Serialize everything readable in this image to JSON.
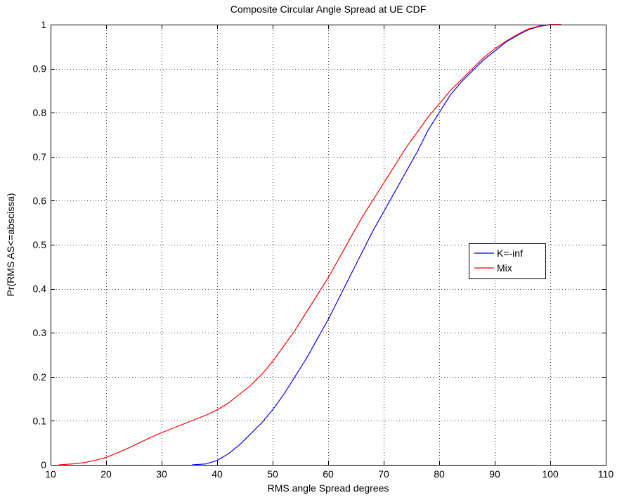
{
  "chart_data": {
    "type": "line",
    "title": "Composite Circular Angle Spread at UE CDF",
    "xlabel": "RMS angle Spread degrees",
    "ylabel": "Pr(RMS AS<=abscissa)",
    "xlim": [
      10,
      110
    ],
    "ylim": [
      0,
      1
    ],
    "xticks": [
      10,
      20,
      30,
      40,
      50,
      60,
      70,
      80,
      90,
      100,
      110
    ],
    "yticks": [
      0,
      0.1,
      0.2,
      0.3,
      0.4,
      0.5,
      0.6,
      0.7,
      0.8,
      0.9,
      1
    ],
    "grid": true,
    "legend_position": "center-right",
    "series": [
      {
        "name": "K=-inf",
        "color": "#0000ff",
        "x": [
          35.5,
          38,
          40,
          42,
          44,
          46,
          48,
          50,
          52,
          54,
          56,
          58,
          60,
          62,
          64,
          66,
          68,
          70,
          72,
          74,
          76,
          78,
          80,
          82,
          84,
          86,
          88,
          90,
          92,
          94,
          96,
          98,
          100,
          102
        ],
        "y": [
          0,
          0.002,
          0.01,
          0.025,
          0.045,
          0.07,
          0.095,
          0.125,
          0.16,
          0.2,
          0.24,
          0.285,
          0.33,
          0.38,
          0.43,
          0.48,
          0.53,
          0.575,
          0.62,
          0.665,
          0.71,
          0.76,
          0.8,
          0.84,
          0.87,
          0.895,
          0.92,
          0.94,
          0.96,
          0.975,
          0.988,
          0.996,
          1,
          1
        ]
      },
      {
        "name": "Mix",
        "color": "#ff0000",
        "x": [
          11.5,
          14,
          16,
          18,
          20,
          22,
          24,
          26,
          28,
          30,
          32,
          34,
          36,
          38,
          40,
          42,
          44,
          46,
          48,
          50,
          52,
          54,
          56,
          58,
          60,
          62,
          64,
          66,
          68,
          70,
          72,
          74,
          76,
          78,
          80,
          82,
          84,
          86,
          88,
          90,
          92,
          94,
          96,
          98,
          100,
          102
        ],
        "y": [
          0,
          0.002,
          0.005,
          0.01,
          0.017,
          0.027,
          0.038,
          0.05,
          0.062,
          0.073,
          0.083,
          0.093,
          0.103,
          0.113,
          0.125,
          0.14,
          0.16,
          0.18,
          0.205,
          0.235,
          0.27,
          0.305,
          0.345,
          0.385,
          0.425,
          0.47,
          0.515,
          0.56,
          0.6,
          0.64,
          0.68,
          0.72,
          0.755,
          0.79,
          0.82,
          0.85,
          0.875,
          0.9,
          0.925,
          0.945,
          0.962,
          0.977,
          0.99,
          0.997,
          1,
          1
        ]
      }
    ]
  }
}
